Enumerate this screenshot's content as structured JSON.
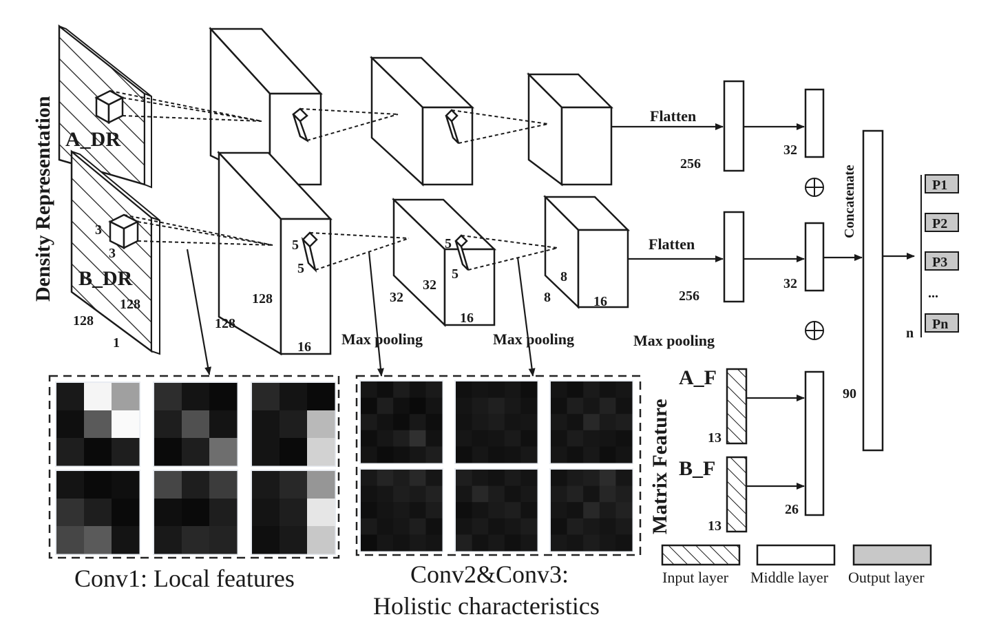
{
  "inputs": {
    "density_representation": "Density Representation",
    "a_dr": "A_DR",
    "b_dr": "B_DR",
    "dim_128_a": "128",
    "dim_128_b": "128",
    "dim_1": "1",
    "kernel_3_h": "3",
    "kernel_3_w": "3"
  },
  "conv_blocks": {
    "c1_128_a": "128",
    "c1_128_b": "128",
    "c1_16": "16",
    "c1_k5_h": "5",
    "c1_k5_w": "5",
    "c2_32_a": "32",
    "c2_32_b": "32",
    "c2_16": "16",
    "c2_k5_h": "5",
    "c2_k5_w": "5",
    "c3_8_a": "8",
    "c3_8_b": "8",
    "c3_16": "16"
  },
  "pooling": {
    "mp1": "Max pooling",
    "mp2": "Max pooling",
    "mp3": "Max pooling"
  },
  "dense": {
    "flatten_top": "Flatten",
    "flatten_bottom": "Flatten",
    "n256_top": "256",
    "n256_bottom": "256",
    "n32_top": "32",
    "n32_bottom": "32",
    "n26": "26",
    "n90": "90",
    "concatenate": "Concatenate",
    "oplus": "⊕"
  },
  "matrix_feature": {
    "title": "Matrix Feature",
    "a_f": "A_F",
    "b_f": "B_F",
    "n13_a": "13",
    "n13_b": "13"
  },
  "outputs": [
    "P1",
    "P2",
    "P3",
    "...",
    "Pn"
  ],
  "output_n": "n",
  "feature_maps": {
    "conv1_caption": "Conv1: Local features",
    "conv23_caption_line1": "Conv2&Conv3:",
    "conv23_caption_line2": "Holistic characteristics",
    "conv1_maps": [
      [
        [
          25,
          245,
          160
        ],
        [
          15,
          90,
          250
        ],
        [
          30,
          10,
          30
        ]
      ],
      [
        [
          45,
          20,
          10
        ],
        [
          30,
          80,
          20
        ],
        [
          10,
          30,
          110
        ]
      ],
      [
        [
          40,
          20,
          10
        ],
        [
          20,
          30,
          185
        ],
        [
          20,
          10,
          210
        ]
      ],
      [
        [
          20,
          10,
          15
        ],
        [
          50,
          30,
          10
        ],
        [
          70,
          90,
          20
        ]
      ],
      [
        [
          70,
          30,
          60
        ],
        [
          15,
          10,
          30
        ],
        [
          25,
          40,
          35
        ]
      ],
      [
        [
          25,
          40,
          150
        ],
        [
          20,
          30,
          230
        ],
        [
          15,
          25,
          200
        ]
      ]
    ],
    "conv23_maps": [
      [
        [
          22,
          14,
          28,
          18,
          26
        ],
        [
          12,
          30,
          16,
          10,
          20
        ],
        [
          26,
          18,
          12,
          24,
          14
        ],
        [
          14,
          22,
          30,
          48,
          18
        ],
        [
          20,
          12,
          16,
          22,
          30
        ]
      ],
      [
        [
          16,
          20,
          18,
          22,
          14
        ],
        [
          20,
          26,
          32,
          24,
          18
        ],
        [
          18,
          24,
          28,
          20,
          22
        ],
        [
          22,
          18,
          20,
          26,
          16
        ],
        [
          14,
          22,
          16,
          18,
          24
        ]
      ],
      [
        [
          20,
          14,
          26,
          18,
          22
        ],
        [
          16,
          30,
          22,
          34,
          18
        ],
        [
          24,
          18,
          40,
          26,
          30
        ],
        [
          18,
          28,
          22,
          20,
          16
        ],
        [
          22,
          16,
          24,
          14,
          20
        ]
      ],
      [
        [
          24,
          36,
          28,
          40,
          22
        ],
        [
          18,
          22,
          30,
          26,
          34
        ],
        [
          14,
          20,
          24,
          18,
          28
        ],
        [
          26,
          18,
          22,
          30,
          16
        ],
        [
          12,
          22,
          18,
          24,
          20
        ]
      ],
      [
        [
          30,
          22,
          18,
          26,
          20
        ],
        [
          22,
          40,
          28,
          18,
          24
        ],
        [
          14,
          20,
          26,
          30,
          18
        ],
        [
          20,
          26,
          18,
          22,
          28
        ],
        [
          32,
          18,
          24,
          16,
          22
        ]
      ],
      [
        [
          18,
          26,
          30,
          44,
          22
        ],
        [
          26,
          34,
          20,
          38,
          30
        ],
        [
          22,
          18,
          40,
          26,
          34
        ],
        [
          16,
          30,
          24,
          20,
          26
        ],
        [
          24,
          20,
          28,
          22,
          18
        ]
      ]
    ]
  },
  "legend": {
    "input_layer": "Input layer",
    "middle_layer": "Middle layer",
    "output_layer": "Output layer",
    "output_color": "#c8c8c8"
  }
}
